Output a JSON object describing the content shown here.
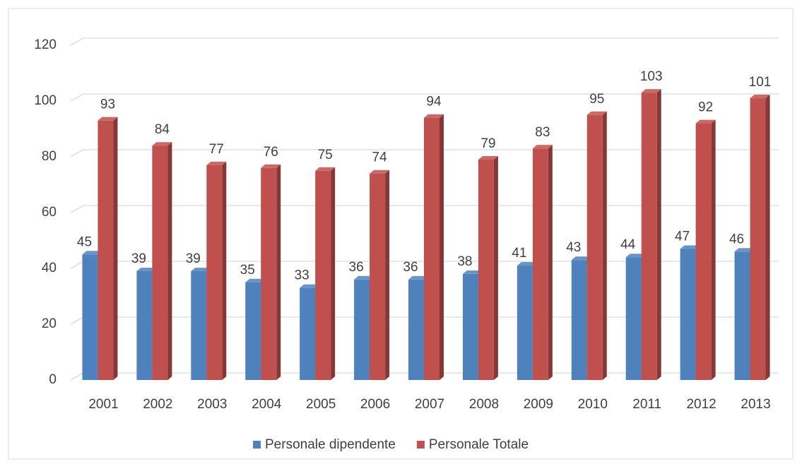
{
  "chart_data": {
    "type": "bar3d",
    "categories": [
      "2001",
      "2002",
      "2003",
      "2004",
      "2005",
      "2006",
      "2007",
      "2008",
      "2009",
      "2010",
      "2011",
      "2012",
      "2013"
    ],
    "series": [
      {
        "name": "Personale dipendente",
        "color": "#4f81bd",
        "values": [
          45,
          39,
          39,
          35,
          33,
          36,
          36,
          38,
          41,
          43,
          44,
          47,
          46
        ]
      },
      {
        "name": "Personale Totale",
        "color": "#c0504d",
        "values": [
          93,
          84,
          77,
          76,
          75,
          74,
          94,
          79,
          83,
          95,
          103,
          92,
          101
        ]
      }
    ],
    "ylim": [
      0,
      120
    ],
    "yticks": [
      0,
      20,
      40,
      60,
      80,
      100,
      120
    ],
    "grid": true,
    "legend": "bottom"
  }
}
